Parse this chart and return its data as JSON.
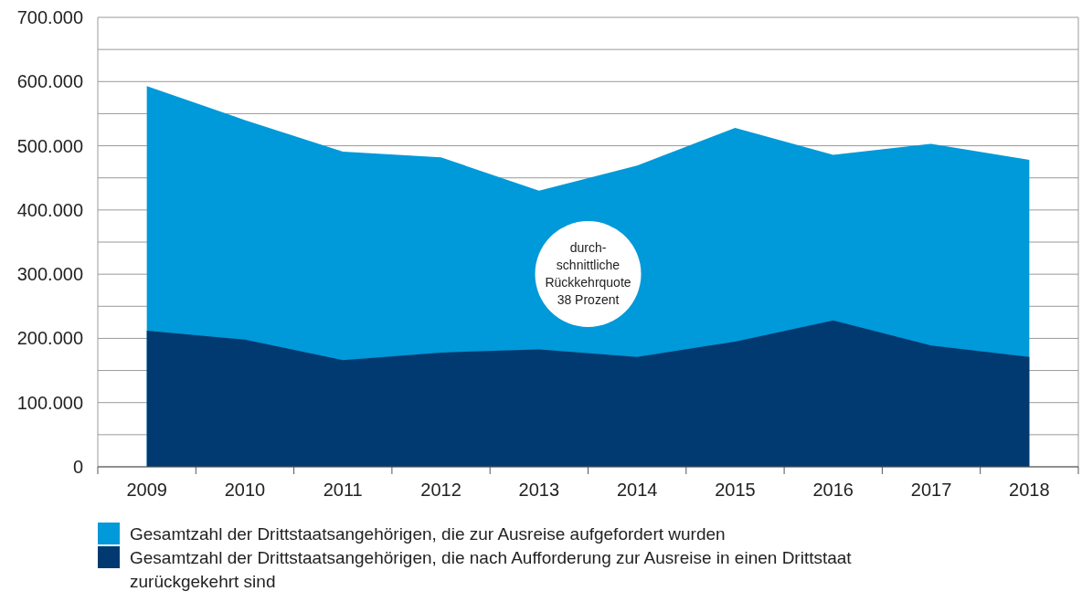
{
  "chart_data": {
    "type": "area",
    "categories": [
      "2009",
      "2010",
      "2011",
      "2012",
      "2013",
      "2014",
      "2015",
      "2016",
      "2017",
      "2018"
    ],
    "series": [
      {
        "name": "Gesamtzahl der Drittstaatsangehörigen, die zur Ausreise aufgefordert wurden",
        "color": "#0099da",
        "values": [
          593000,
          540000,
          491000,
          482000,
          430000,
          469000,
          528000,
          486000,
          503000,
          478000
        ]
      },
      {
        "name": "Gesamtzahl der Drittstaatsangehörigen, die nach Aufforderung zur Ausreise in einen Drittstaat zurückgekehrt sind",
        "color": "#003a70",
        "values": [
          212000,
          198000,
          166000,
          178000,
          183000,
          171000,
          195000,
          228000,
          189000,
          171000
        ]
      }
    ],
    "ylim": [
      0,
      700000
    ],
    "yticks": [
      0,
      {
        "value": 50000,
        "label": null
      },
      {
        "value": 100000,
        "label": "100.000"
      },
      {
        "value": 150000,
        "label": null
      },
      {
        "value": 200000,
        "label": "200.000"
      },
      {
        "value": 250000,
        "label": null
      },
      {
        "value": 300000,
        "label": "300.000"
      },
      {
        "value": 350000,
        "label": null
      },
      {
        "value": 400000,
        "label": "400.000"
      },
      {
        "value": 450000,
        "label": null
      },
      {
        "value": 500000,
        "label": "500.000"
      },
      {
        "value": 550000,
        "label": null
      },
      {
        "value": 600000,
        "label": "600.000"
      },
      {
        "value": 650000,
        "label": null
      },
      {
        "value": 700000,
        "label": "700.000"
      }
    ],
    "grid": "y",
    "legend": "bottom",
    "annotations": [
      "durch-\nschnittliche\nRückkehrquote\n38 Prozent"
    ]
  }
}
